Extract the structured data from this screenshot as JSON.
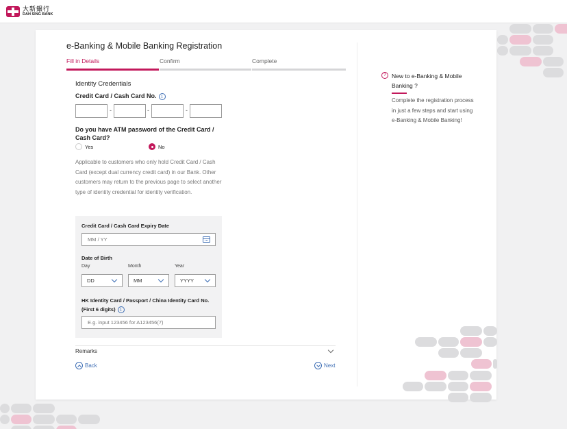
{
  "brand": {
    "name_cn": "大新銀行",
    "name_en": "DAH SING BANK",
    "color": "#c2185b"
  },
  "page": {
    "title": "e-Banking & Mobile Banking Registration"
  },
  "steps": [
    {
      "label": "Fill in Details",
      "active": true
    },
    {
      "label": "Confirm",
      "active": false
    },
    {
      "label": "Complete",
      "active": false
    }
  ],
  "form": {
    "section_title": "Identity Credentials",
    "card_no_label": "Credit Card / Cash Card No.",
    "info_glyph": "i",
    "card_no_values": [
      "",
      "",
      "",
      ""
    ],
    "dash": "-",
    "atm_question": "Do you have ATM password of the Credit Card / Cash Card?",
    "radio_yes": "Yes",
    "radio_no": "No",
    "selected_radio": "No",
    "note": "Applicable to customers who only hold Credit Card / Cash Card (except dual currency credit card) in our Bank. Other customers may return to the previous page to select another type of identity credential for identity verification.",
    "expiry_label": "Credit Card / Cash Card Expiry Date",
    "expiry_placeholder": "MM / YY",
    "dob_label": "Date of Birth",
    "day_label": "Day",
    "month_label": "Month",
    "year_label": "Year",
    "day_value": "DD",
    "month_value": "MM",
    "year_value": "YYYY",
    "id_label": "HK Identity Card / Passport / China Identity Card No. (First 6 digits)",
    "id_placeholder": "E.g. input 123456 for A123456(7)",
    "remarks": "Remarks",
    "back": "Back",
    "next": "Next"
  },
  "sidebar": {
    "icon_glyph": "?",
    "title": "New to e-Banking & Mobile Banking ?",
    "text": "Complete the registration process in just a few steps and start using e-Banking & Mobile Banking!"
  }
}
